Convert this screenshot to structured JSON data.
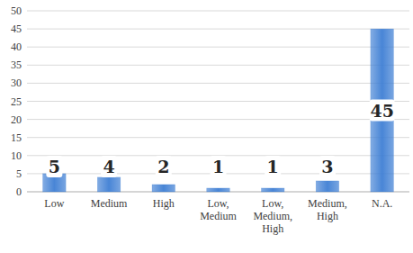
{
  "chart_data": {
    "type": "bar",
    "categories": [
      "Low",
      "Medium",
      "High",
      "Low, Medium",
      "Low, Medium, High",
      "Medium, High",
      "N.A."
    ],
    "values": [
      5,
      4,
      2,
      1,
      1,
      3,
      45
    ],
    "color": "#3f7fd4",
    "ylim": [
      0,
      50
    ],
    "yticks": [
      0,
      5,
      10,
      15,
      20,
      25,
      30,
      35,
      40,
      45,
      50
    ],
    "grid": true,
    "data_labels": true
  }
}
